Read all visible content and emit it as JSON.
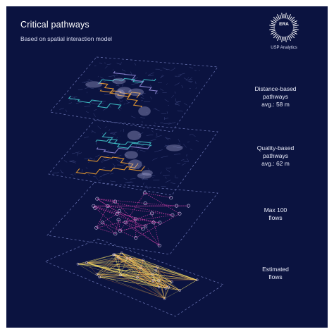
{
  "header": {
    "title": "Critical pathways",
    "subtitle": "Based on spatial interaction model"
  },
  "brand": {
    "logo_text": "ERA",
    "name": "USP Analytics"
  },
  "layers": [
    {
      "id": "distance",
      "lines": [
        "Distance-based",
        "pathways",
        "avg.: 58 m"
      ]
    },
    {
      "id": "quality",
      "lines": [
        "Quality-based",
        "pathways",
        "avg.: 62 m"
      ]
    },
    {
      "id": "max100",
      "lines": [
        "Max 100",
        "flows"
      ]
    },
    {
      "id": "estimated",
      "lines": [
        "Estimated",
        "flows"
      ]
    }
  ],
  "colors": {
    "background": "#0b1340",
    "street_grid": "#5c67a8",
    "pathway_orange": "#f0a030",
    "pathway_teal": "#3fc3c9",
    "pathway_lavender": "#8f88d6",
    "flow_magenta": "#d23fa8",
    "flow_yellow": "#f3e06a",
    "flow_orange": "#f08a3a",
    "dashed_outline": "#6e78b8"
  }
}
